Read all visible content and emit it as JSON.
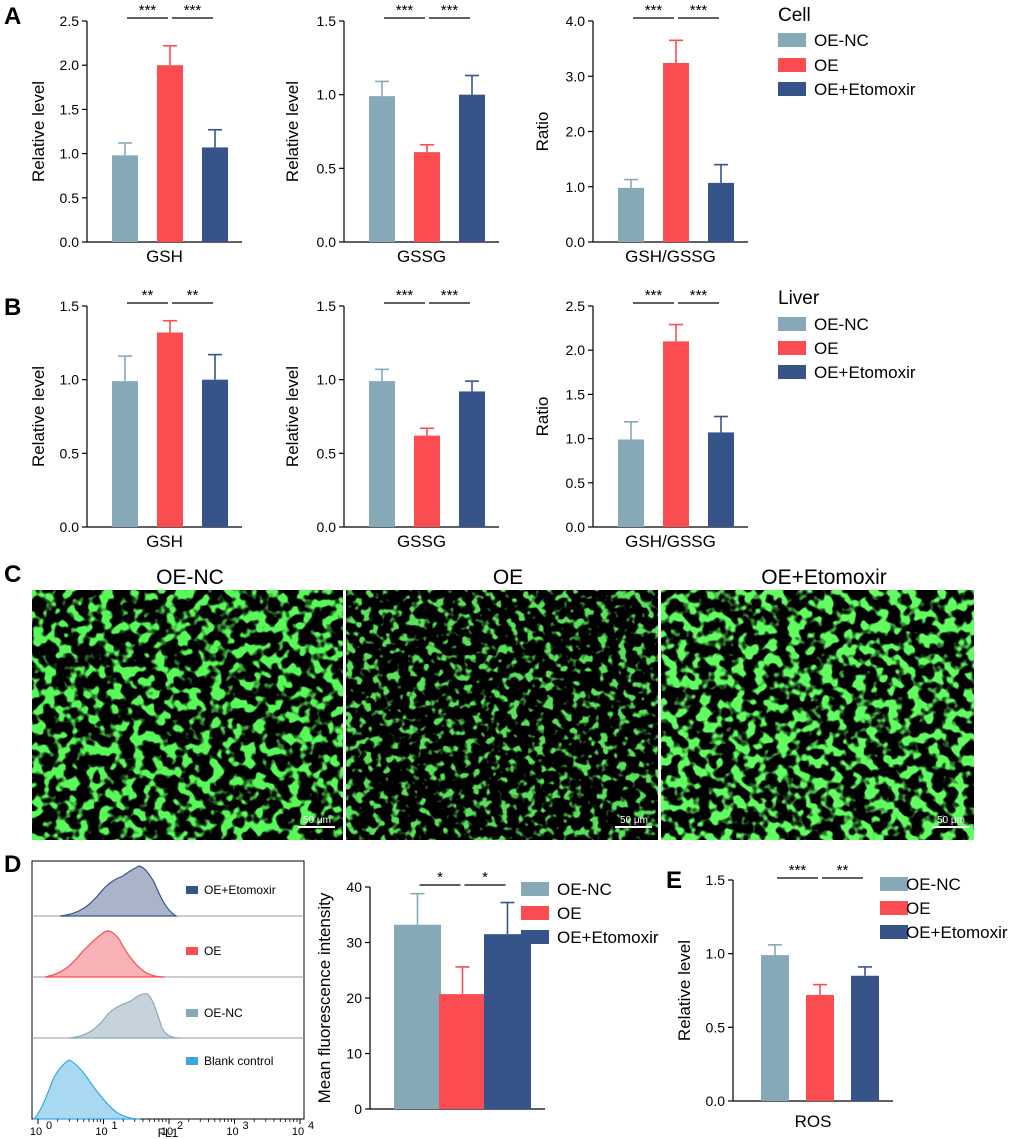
{
  "colors": {
    "oe_nc": "#86a9b8",
    "oe": "#fb4c51",
    "oe_etomoxir": "#36548a",
    "blank": "#3aa7df"
  },
  "panels": {
    "a": "A",
    "b": "B",
    "c": "C",
    "d": "D",
    "e": "E"
  },
  "legend_a": {
    "title": "Cell",
    "items": [
      "OE-NC",
      "OE",
      "OE+Etomoxir"
    ]
  },
  "legend_b": {
    "title": "Liver",
    "items": [
      "OE-NC",
      "OE",
      "OE+Etomoxir"
    ]
  },
  "legend_d": {
    "items": [
      "OE-NC",
      "OE",
      "OE+Etomoxir"
    ]
  },
  "legend_e": {
    "items": [
      "OE-NC",
      "OE",
      "OE+Etomoxir"
    ]
  },
  "images": {
    "titles": [
      "OE-NC",
      "OE",
      "OE+Etomoxir"
    ],
    "scale_bar": "50 μm"
  },
  "flow": {
    "tracks": [
      "OE+Etomoxir",
      "OE",
      "OE-NC",
      "Blank control"
    ],
    "xlabel": "FL1",
    "ticks": [
      "10",
      "10",
      "10",
      "10",
      "10"
    ],
    "tick_exponents": [
      "0",
      "1",
      "2",
      "3",
      "4"
    ]
  },
  "chart_data": [
    {
      "id": "a1",
      "type": "bar",
      "categories": [
        "OE-NC",
        "OE",
        "OE+Etomoxir"
      ],
      "values": [
        0.98,
        2.0,
        1.07
      ],
      "errors": [
        0.14,
        0.22,
        0.2
      ],
      "ylim": [
        0,
        2.5
      ],
      "yticks": [
        "0.0",
        "0.5",
        "1.0",
        "1.5",
        "2.0",
        "2.5"
      ],
      "ylabel": "Relative level",
      "xlabel": "GSH",
      "sig": [
        "***",
        "***"
      ]
    },
    {
      "id": "a2",
      "type": "bar",
      "categories": [
        "OE-NC",
        "OE",
        "OE+Etomoxir"
      ],
      "values": [
        0.99,
        0.61,
        1.0
      ],
      "errors": [
        0.1,
        0.05,
        0.13
      ],
      "ylim": [
        0,
        1.5
      ],
      "yticks": [
        "0.0",
        "0.5",
        "1.0",
        "1.5"
      ],
      "ylabel": "Relative level",
      "xlabel": "GSSG",
      "sig": [
        "***",
        "***"
      ]
    },
    {
      "id": "a3",
      "type": "bar",
      "categories": [
        "OE-NC",
        "OE",
        "OE+Etomoxir"
      ],
      "values": [
        0.98,
        3.24,
        1.07
      ],
      "errors": [
        0.15,
        0.41,
        0.33
      ],
      "ylim": [
        0,
        4.0
      ],
      "yticks": [
        "0.0",
        "1.0",
        "2.0",
        "3.0",
        "4.0"
      ],
      "ylabel": "Ratio",
      "xlabel": "GSH/GSSG",
      "sig": [
        "***",
        "***"
      ]
    },
    {
      "id": "b1",
      "type": "bar",
      "categories": [
        "OE-NC",
        "OE",
        "OE+Etomoxir"
      ],
      "values": [
        0.99,
        1.32,
        1.0
      ],
      "errors": [
        0.17,
        0.08,
        0.17
      ],
      "ylim": [
        0,
        1.5
      ],
      "yticks": [
        "0.0",
        "0.5",
        "1.0",
        "1.5"
      ],
      "ylabel": "Relative level",
      "xlabel": "GSH",
      "sig": [
        "**",
        "**"
      ]
    },
    {
      "id": "b2",
      "type": "bar",
      "categories": [
        "OE-NC",
        "OE",
        "OE+Etomoxir"
      ],
      "values": [
        0.99,
        0.62,
        0.92
      ],
      "errors": [
        0.08,
        0.05,
        0.07
      ],
      "ylim": [
        0,
        1.5
      ],
      "yticks": [
        "0.0",
        "0.5",
        "1.0",
        "1.5"
      ],
      "ylabel": "Relative level",
      "xlabel": "GSSG",
      "sig": [
        "***",
        "***"
      ]
    },
    {
      "id": "b3",
      "type": "bar",
      "categories": [
        "OE-NC",
        "OE",
        "OE+Etomoxir"
      ],
      "values": [
        0.99,
        2.1,
        1.07
      ],
      "errors": [
        0.2,
        0.19,
        0.18
      ],
      "ylim": [
        0,
        2.5
      ],
      "yticks": [
        "0.0",
        "0.5",
        "1.0",
        "1.5",
        "2.0",
        "2.5"
      ],
      "ylabel": "Ratio",
      "xlabel": "GSH/GSSG",
      "sig": [
        "***",
        "***"
      ]
    },
    {
      "id": "d",
      "type": "bar",
      "categories": [
        "OE-NC",
        "OE",
        "OE+Etomoxir"
      ],
      "values": [
        33.2,
        20.7,
        31.5
      ],
      "errors": [
        5.6,
        4.9,
        5.7
      ],
      "ylim": [
        0,
        40
      ],
      "yticks": [
        "0",
        "10",
        "20",
        "30",
        "40"
      ],
      "ylabel": "Mean fluorescence intensity",
      "xlabel": "",
      "sig": [
        "*",
        "*"
      ]
    },
    {
      "id": "e",
      "type": "bar",
      "categories": [
        "OE-NC",
        "OE",
        "OE+Etomoxir"
      ],
      "values": [
        0.99,
        0.72,
        0.85
      ],
      "errors": [
        0.07,
        0.07,
        0.06
      ],
      "ylim": [
        0,
        1.5
      ],
      "yticks": [
        "0.0",
        "0.5",
        "1.0",
        "1.5"
      ],
      "ylabel": "Relative level",
      "xlabel": "ROS",
      "sig": [
        "***",
        "**"
      ]
    }
  ]
}
